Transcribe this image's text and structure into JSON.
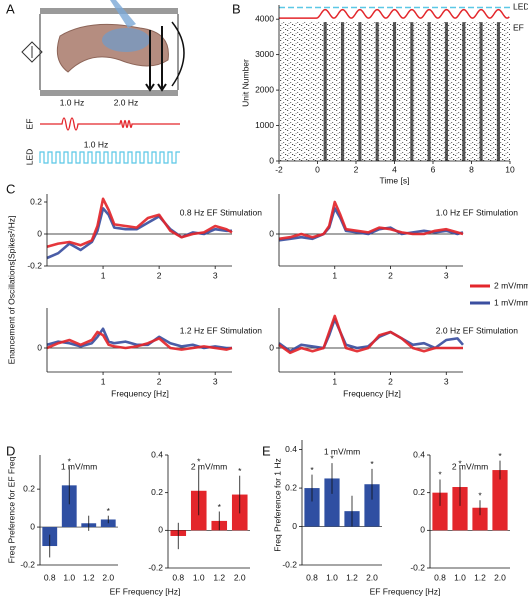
{
  "panel_labels": [
    "A",
    "B",
    "C",
    "D",
    "E"
  ],
  "schematic": {
    "ef_freq_1": "1.0 Hz",
    "ef_freq_2": "2.0 Hz",
    "ef_label": "EF",
    "led_label": "LED",
    "led_freq": "1.0 Hz"
  },
  "chart_data": [
    {
      "type": "raster",
      "xlim": [
        -2,
        10
      ],
      "xticks": [
        -2,
        0,
        2,
        4,
        6,
        8,
        10
      ],
      "ylim": [
        0,
        4400
      ],
      "yticks": [
        0,
        1000,
        2000,
        3000,
        4000
      ],
      "x_label": "Time [s]",
      "y_label": "Unit Number",
      "burst_times": [
        0.4,
        1.3,
        2.2,
        3.1,
        4.0,
        4.9,
        5.8,
        6.7,
        7.6,
        8.5,
        9.4
      ],
      "series": [
        {
          "name": "LED",
          "color": "#5bc8e6",
          "level": 4330
        },
        {
          "name": "EF",
          "color": "#e3262b",
          "level": 4030,
          "peak": 4270
        }
      ]
    },
    {
      "type": "line",
      "title": "0.8 Hz EF Stimulation",
      "y_label": "Enancement of Oscillations[Spikes²/Hz]",
      "x": [
        0,
        0.2,
        0.4,
        0.6,
        0.8,
        0.9,
        1.0,
        1.1,
        1.2,
        1.4,
        1.6,
        1.8,
        2.0,
        2.2,
        2.4,
        2.6,
        2.8,
        3.0,
        3.2,
        3.3
      ],
      "xlim": [
        0,
        3.3
      ],
      "xticks": [
        1,
        2,
        3
      ],
      "ylim": [
        -0.2,
        0.25
      ],
      "yticks": [
        -0.2,
        0,
        0.2
      ],
      "series": [
        {
          "name": "2 mV/mm",
          "color": "#e3262b",
          "values": [
            -0.08,
            -0.06,
            -0.05,
            -0.07,
            -0.04,
            0.05,
            0.22,
            0.15,
            0.06,
            0.05,
            0.04,
            0.1,
            0.12,
            0.02,
            -0.02,
            0.0,
            0.01,
            0.05,
            0.03,
            0.01
          ]
        },
        {
          "name": "1 mV/mm",
          "color": "#3b4fa0",
          "values": [
            -0.15,
            -0.12,
            -0.06,
            -0.1,
            -0.05,
            0.02,
            0.16,
            0.12,
            0.04,
            0.03,
            0.03,
            0.07,
            0.11,
            0.03,
            -0.02,
            0.01,
            0.0,
            0.03,
            0.02,
            0.02
          ]
        }
      ]
    },
    {
      "type": "line",
      "title": "1.0 Hz EF Stimulation",
      "x": [
        0,
        0.2,
        0.4,
        0.6,
        0.8,
        0.9,
        1.0,
        1.1,
        1.2,
        1.4,
        1.6,
        1.8,
        2.0,
        2.2,
        2.4,
        2.6,
        2.8,
        3.0,
        3.2,
        3.3
      ],
      "xlim": [
        0,
        3.3
      ],
      "xticks": [
        1,
        2,
        3
      ],
      "ylim": [
        -0.2,
        0.25
      ],
      "yticks": [
        0
      ],
      "series": [
        {
          "name": "2 mV/mm",
          "color": "#e3262b",
          "values": [
            -0.03,
            -0.02,
            0.0,
            -0.02,
            0.0,
            0.05,
            0.2,
            0.12,
            0.03,
            0.02,
            0.01,
            0.04,
            0.03,
            0.01,
            0.0,
            0.0,
            0.02,
            0.03,
            0.01,
            0.0
          ]
        },
        {
          "name": "1 mV/mm",
          "color": "#3b4fa0",
          "values": [
            -0.04,
            -0.03,
            -0.02,
            -0.03,
            0.0,
            0.04,
            0.16,
            0.1,
            0.02,
            0.01,
            0.0,
            0.03,
            0.04,
            0.0,
            0.01,
            0.02,
            0.01,
            0.02,
            0.0,
            0.01
          ]
        }
      ]
    },
    {
      "type": "line",
      "title": "1.2 Hz EF Stimulation",
      "x_label": "Frequency [Hz]",
      "x": [
        0,
        0.2,
        0.4,
        0.6,
        0.8,
        0.9,
        1.0,
        1.1,
        1.2,
        1.4,
        1.6,
        1.8,
        2.0,
        2.2,
        2.4,
        2.6,
        2.8,
        3.0,
        3.2,
        3.3
      ],
      "xlim": [
        0,
        3.3
      ],
      "xticks": [
        1,
        2,
        3
      ],
      "ylim": [
        -0.15,
        0.25
      ],
      "yticks": [
        0
      ],
      "series": [
        {
          "name": "2 mV/mm",
          "color": "#e3262b",
          "values": [
            0.0,
            0.03,
            0.05,
            0.02,
            0.05,
            0.1,
            0.08,
            0.02,
            0.01,
            0.0,
            0.01,
            0.03,
            0.06,
            0.0,
            -0.01,
            0.0,
            0.01,
            0.0,
            -0.01,
            0.0
          ]
        },
        {
          "name": "1 mV/mm",
          "color": "#3b4fa0",
          "values": [
            0.02,
            0.04,
            0.03,
            0.01,
            0.03,
            0.07,
            0.12,
            0.04,
            0.03,
            0.04,
            0.02,
            0.02,
            0.07,
            0.03,
            0.01,
            0.02,
            0.0,
            0.01,
            0.0,
            0.0
          ]
        }
      ]
    },
    {
      "type": "line",
      "title": "2.0 Hz EF Stimulation",
      "x_label": "Frequency [Hz]",
      "x": [
        0,
        0.2,
        0.4,
        0.6,
        0.8,
        0.9,
        1.0,
        1.1,
        1.2,
        1.4,
        1.6,
        1.8,
        2.0,
        2.2,
        2.4,
        2.6,
        2.8,
        3.0,
        3.2,
        3.3
      ],
      "xlim": [
        0,
        3.3
      ],
      "xticks": [
        1,
        2,
        3
      ],
      "ylim": [
        -0.15,
        0.25
      ],
      "yticks": [
        0
      ],
      "series": [
        {
          "name": "2 mV/mm",
          "color": "#e3262b",
          "values": [
            0.02,
            -0.03,
            0.0,
            -0.02,
            0.0,
            0.1,
            0.2,
            0.1,
            0.0,
            -0.02,
            0.0,
            0.08,
            0.1,
            0.06,
            0.0,
            -0.02,
            0.0,
            0.0,
            0.0,
            0.0
          ]
        },
        {
          "name": "1 mV/mm",
          "color": "#3b4fa0",
          "values": [
            0.03,
            -0.02,
            0.02,
            0.01,
            0.0,
            0.08,
            0.18,
            0.1,
            0.02,
            0.0,
            0.01,
            0.07,
            0.1,
            0.06,
            0.02,
            0.03,
            0.0,
            0.05,
            0.06,
            0.02
          ]
        }
      ]
    },
    {
      "type": "bar",
      "title": "1 mV/mm",
      "y_label": "Freq Preference for EF Freq",
      "x_label": "EF Frequency [Hz]",
      "categories": [
        "0.8",
        "1.0",
        "1.2",
        "2.0"
      ],
      "values": [
        -0.1,
        0.22,
        0.02,
        0.04
      ],
      "errors": [
        0.06,
        0.1,
        0.04,
        0.02
      ],
      "significant": [
        false,
        true,
        false,
        true
      ],
      "marker": "*",
      "color": "#2f4fa2",
      "ylim": [
        -0.2,
        0.38
      ],
      "yticks": [
        -0.2,
        0,
        0.2
      ]
    },
    {
      "type": "bar",
      "title": "2 mV/mm",
      "categories": [
        "0.8",
        "1.0",
        "1.2",
        "2.0"
      ],
      "values": [
        -0.03,
        0.21,
        0.05,
        0.19
      ],
      "errors": [
        0.07,
        0.13,
        0.05,
        0.1
      ],
      "significant": [
        false,
        true,
        true,
        true
      ],
      "marker": "*",
      "color": "#e3262b",
      "ylim": [
        -0.2,
        0.4
      ],
      "yticks": [
        -0.2,
        0,
        0.2,
        0.4
      ]
    },
    {
      "type": "bar",
      "title": "1 mV/mm",
      "y_label": "Freq Preference for 1 Hz",
      "x_label": "EF Frequency [Hz]",
      "categories": [
        "0.8",
        "1.0",
        "1.2",
        "2.0"
      ],
      "values": [
        0.2,
        0.25,
        0.08,
        0.22
      ],
      "errors": [
        0.07,
        0.08,
        0.08,
        0.08
      ],
      "significant": [
        true,
        true,
        false,
        true
      ],
      "marker": "*",
      "color": "#2f4fa2",
      "ylim": [
        -0.2,
        0.45
      ],
      "yticks": [
        -0.2,
        0,
        0.2,
        0.4
      ]
    },
    {
      "type": "bar",
      "title": "2 mV/mm",
      "categories": [
        "0.8",
        "1.0",
        "1.2",
        "2.0"
      ],
      "values": [
        0.2,
        0.23,
        0.12,
        0.32
      ],
      "errors": [
        0.07,
        0.1,
        0.04,
        0.05
      ],
      "significant": [
        true,
        true,
        true,
        true
      ],
      "marker": "*",
      "color": "#e3262b",
      "ylim": [
        -0.2,
        0.4
      ],
      "yticks": [
        -0.2,
        0,
        0.2,
        0.4
      ]
    }
  ]
}
